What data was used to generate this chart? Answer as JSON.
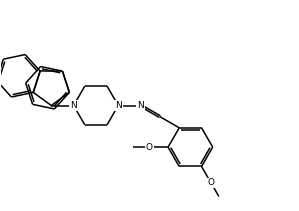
{
  "bg_color": "#ffffff",
  "line_color": "#000000",
  "line_width": 1.1,
  "font_size": 6.5,
  "fig_width": 2.99,
  "fig_height": 2.11,
  "dpi": 100,
  "xlim": [
    -2.5,
    7.5
  ],
  "ylim": [
    -3.5,
    3.5
  ]
}
